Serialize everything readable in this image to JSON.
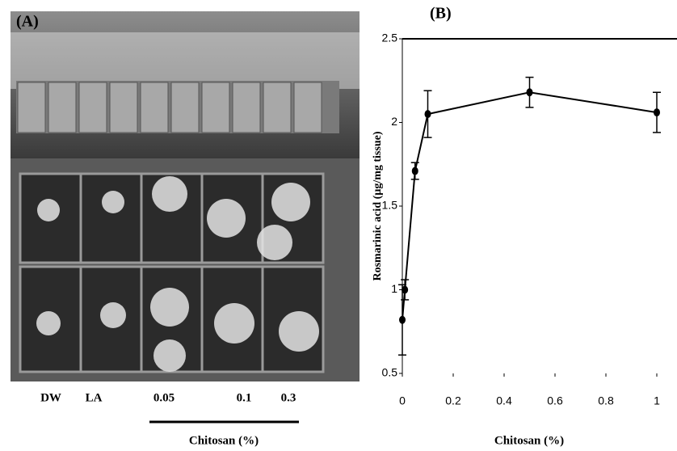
{
  "panel_a": {
    "label": "(A)",
    "groups": [
      "DW",
      "LA",
      "0.05",
      "0.1",
      "0.3"
    ],
    "group_axis_label": "Chitosan (%)"
  },
  "chart_data": {
    "type": "line",
    "panel_label": "(B)",
    "x_label": "Chitosan (%)",
    "y_label": "Rosmarinic acid  (µg/mg tissue)",
    "x": [
      0,
      0.01,
      0.05,
      0.1,
      0.5,
      1
    ],
    "values": [
      0.82,
      1.0,
      1.71,
      2.05,
      2.18,
      2.06
    ],
    "errors": [
      0.21,
      0.06,
      0.05,
      0.14,
      0.09,
      0.12
    ],
    "color": "#000000",
    "xlim": [
      0,
      1
    ],
    "xticks": [
      0,
      0.2,
      0.4,
      0.6,
      0.8,
      1
    ],
    "ylim": [
      0.5,
      2.5
    ],
    "yticks": [
      0.5,
      1,
      1.5,
      2,
      2.5
    ]
  }
}
